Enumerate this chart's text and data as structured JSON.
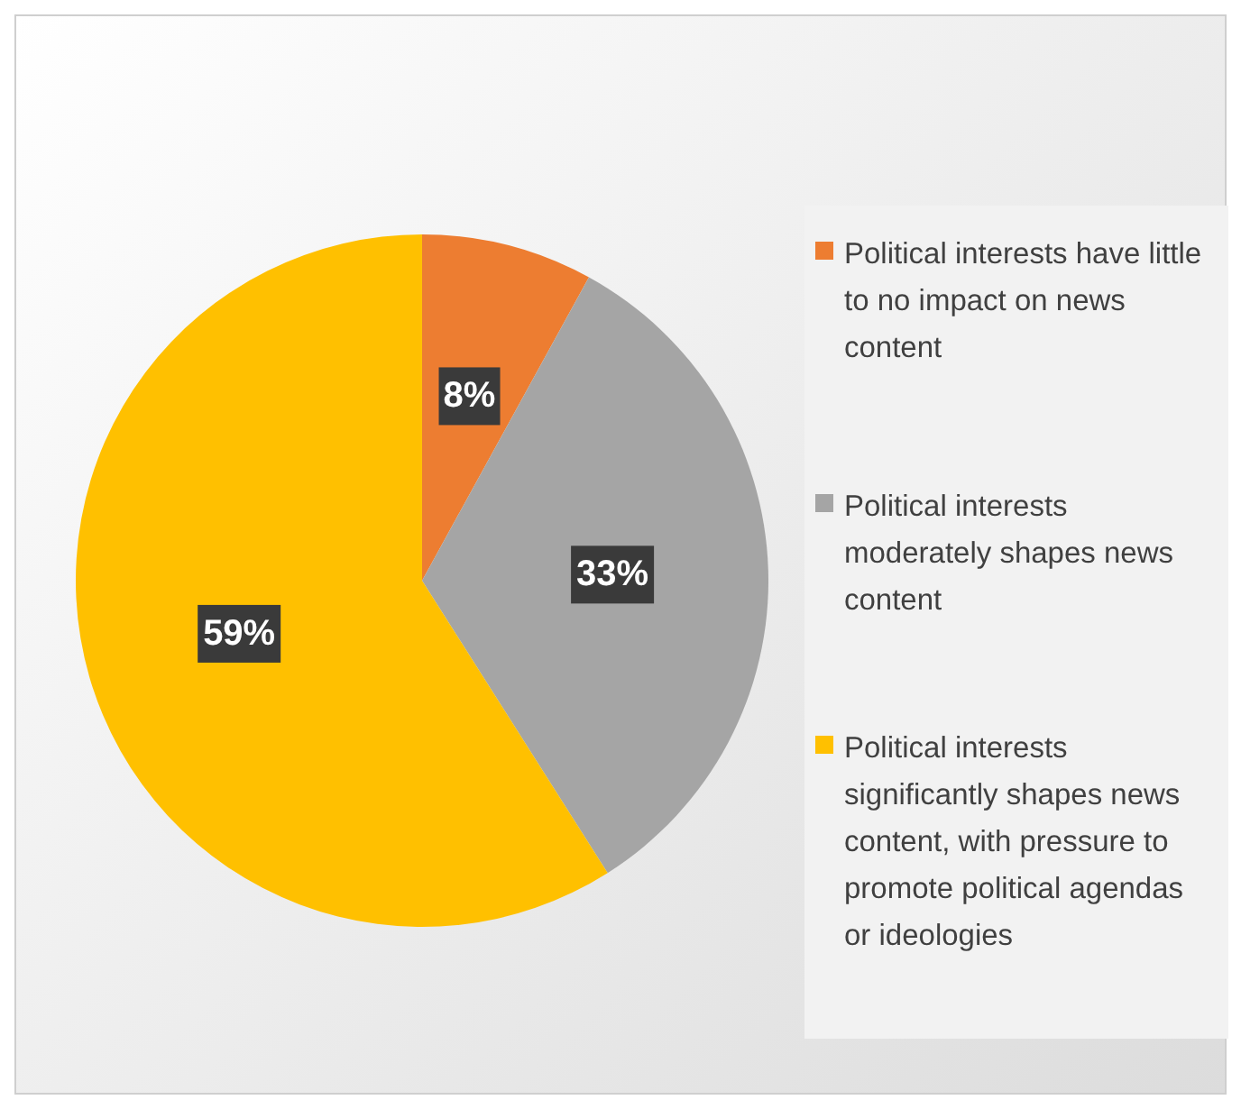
{
  "chart_data": {
    "type": "pie",
    "categories": [
      "Political interests have little to no impact on news content",
      "Political interests moderately shapes news content",
      "Political interests significantly shapes news content, with pressure to promote political agendas  or ideologies"
    ],
    "values": [
      8,
      33,
      59
    ],
    "colors": [
      "#ed7d31",
      "#a5a5a5",
      "#ffc000"
    ],
    "value_labels": [
      "8%",
      "33%",
      "59%"
    ],
    "legend": "right"
  }
}
